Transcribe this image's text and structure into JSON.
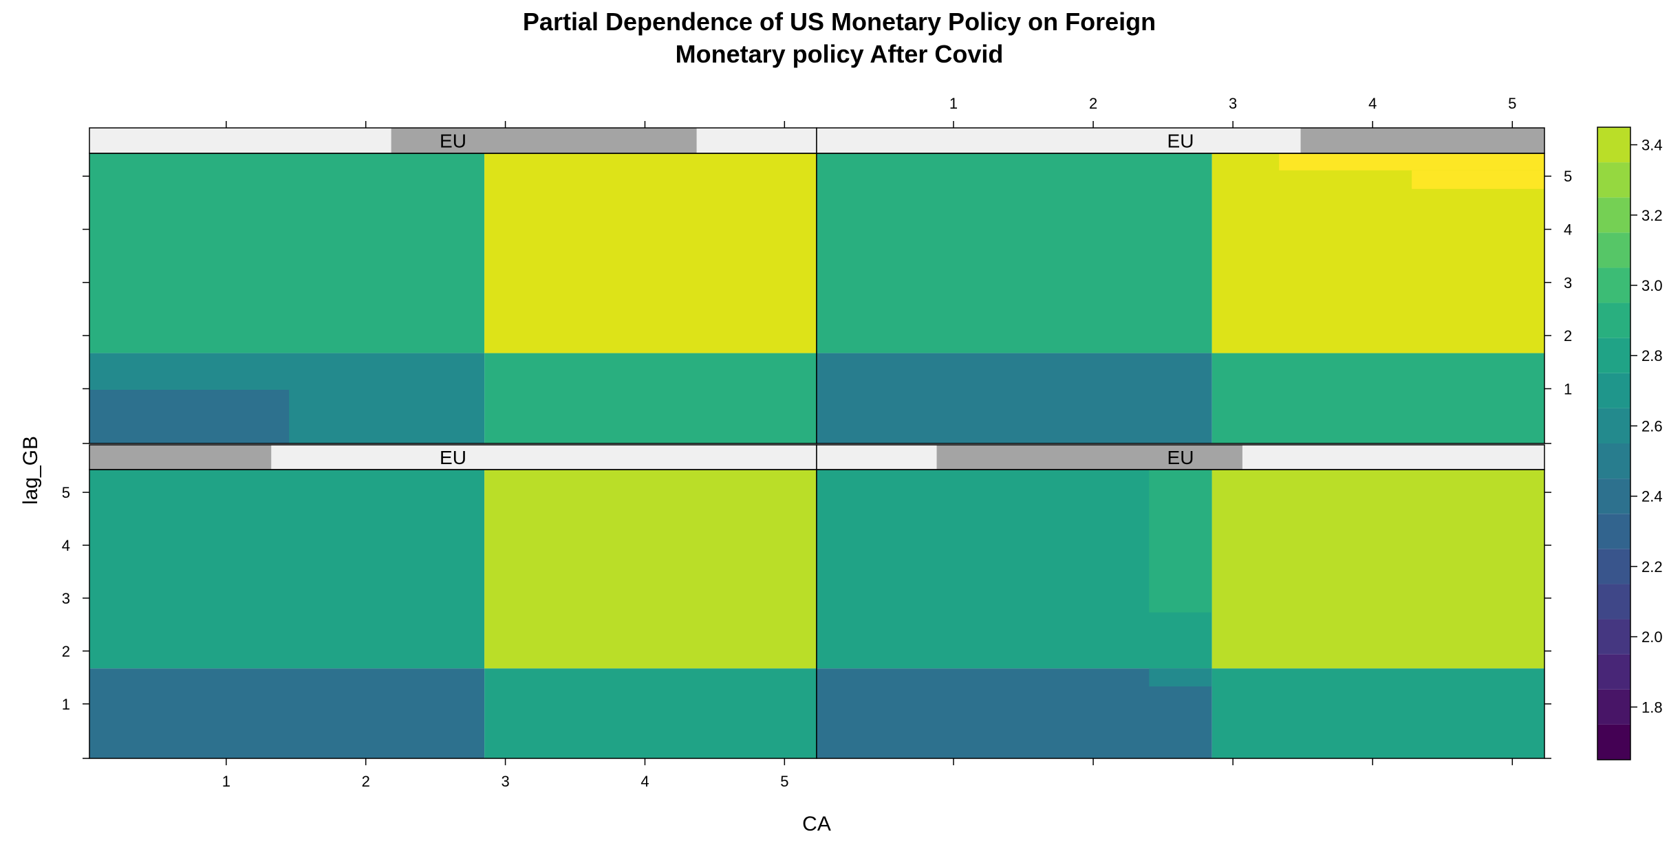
{
  "chart_data": {
    "type": "heatmap",
    "title": "Partial Dependence of US Monetary Policy on Foreign\nMonetary policy After Covid",
    "xlabel": "CA",
    "ylabel": "lag_GB",
    "xlim": [
      0.02,
      5.23
    ],
    "ylim": [
      -0.03,
      5.43
    ],
    "xticks": [
      1,
      2,
      3,
      4,
      5
    ],
    "yticks": [
      1,
      2,
      3,
      4,
      5
    ],
    "grid": false,
    "layout": "2x2 lattice",
    "legend": {
      "placement": "right",
      "ticks": [
        1.8,
        2.0,
        2.2,
        2.4,
        2.6,
        2.8,
        3.0,
        3.2,
        3.4
      ],
      "breaks": [
        1.65,
        1.75,
        1.85,
        1.95,
        2.05,
        2.15,
        2.25,
        2.35,
        2.45,
        2.55,
        2.65,
        2.75,
        2.85,
        2.95,
        3.05,
        3.15,
        3.25,
        3.35,
        3.45
      ],
      "colors": [
        "#440154",
        "#481567",
        "#482677",
        "#453781",
        "#3F4788",
        "#39558C",
        "#32648E",
        "#2D718E",
        "#287D8E",
        "#238A8D",
        "#1F968B",
        "#20A386",
        "#29AF7F",
        "#3CBC75",
        "#56C667",
        "#75D054",
        "#95D840",
        "#BADE28",
        "#DDE318",
        "#FDE725"
      ]
    },
    "panels": [
      {
        "strip_label": "EU",
        "strip_range": [
          0.0,
          0.25
        ],
        "rects": [
          {
            "x0": 0.02,
            "x1": 2.85,
            "y0": 1.67,
            "y1": 5.43,
            "value": 2.68
          },
          {
            "x0": 2.85,
            "x1": 5.23,
            "y0": 1.67,
            "y1": 5.43,
            "value": 3.27
          },
          {
            "x0": 0.02,
            "x1": 2.85,
            "y0": -0.03,
            "y1": 1.67,
            "value": 2.28
          },
          {
            "x0": 2.85,
            "x1": 5.23,
            "y0": -0.03,
            "y1": 1.67,
            "value": 2.68
          }
        ]
      },
      {
        "strip_label": "EU",
        "strip_range": [
          0.165,
          0.585
        ],
        "rects": [
          {
            "x0": 0.02,
            "x1": 2.85,
            "y0": 1.67,
            "y1": 5.43,
            "value": 2.68
          },
          {
            "x0": 2.4,
            "x1": 2.85,
            "y0": 2.73,
            "y1": 5.43,
            "value": 2.78
          },
          {
            "x0": 2.85,
            "x1": 5.23,
            "y0": 1.67,
            "y1": 5.43,
            "value": 3.27
          },
          {
            "x0": 0.02,
            "x1": 2.85,
            "y0": -0.03,
            "y1": 1.67,
            "value": 2.28
          },
          {
            "x0": 2.4,
            "x1": 2.85,
            "y0": 1.33,
            "y1": 1.67,
            "value": 2.45
          },
          {
            "x0": 2.85,
            "x1": 5.23,
            "y0": -0.03,
            "y1": 1.67,
            "value": 2.68
          }
        ]
      },
      {
        "strip_label": "EU",
        "strip_range": [
          0.415,
          0.835
        ],
        "rects": [
          {
            "x0": 0.02,
            "x1": 2.85,
            "y0": 1.67,
            "y1": 5.43,
            "value": 2.78
          },
          {
            "x0": 2.85,
            "x1": 5.23,
            "y0": 1.67,
            "y1": 5.43,
            "value": 3.35
          },
          {
            "x0": 0.02,
            "x1": 2.85,
            "y0": -0.03,
            "y1": 1.67,
            "value": 2.45
          },
          {
            "x0": 0.02,
            "x1": 1.45,
            "y0": -0.03,
            "y1": 0.98,
            "value": 2.32
          },
          {
            "x0": 2.85,
            "x1": 5.23,
            "y0": -0.03,
            "y1": 1.67,
            "value": 2.78
          }
        ]
      },
      {
        "strip_label": "EU",
        "strip_range": [
          0.665,
          1.0
        ],
        "rects": [
          {
            "x0": 0.02,
            "x1": 2.85,
            "y0": 1.67,
            "y1": 5.43,
            "value": 2.78
          },
          {
            "x0": 2.85,
            "x1": 5.23,
            "y0": 1.67,
            "y1": 5.43,
            "value": 3.35
          },
          {
            "x0": 3.33,
            "x1": 5.23,
            "y0": 5.11,
            "y1": 5.43,
            "value": 3.45
          },
          {
            "x0": 4.28,
            "x1": 5.23,
            "y0": 4.76,
            "y1": 5.11,
            "value": 3.45
          },
          {
            "x0": 0.02,
            "x1": 2.85,
            "y0": -0.03,
            "y1": 1.67,
            "value": 2.38
          },
          {
            "x0": 2.85,
            "x1": 5.23,
            "y0": -0.03,
            "y1": 1.67,
            "value": 2.78
          }
        ]
      }
    ]
  }
}
